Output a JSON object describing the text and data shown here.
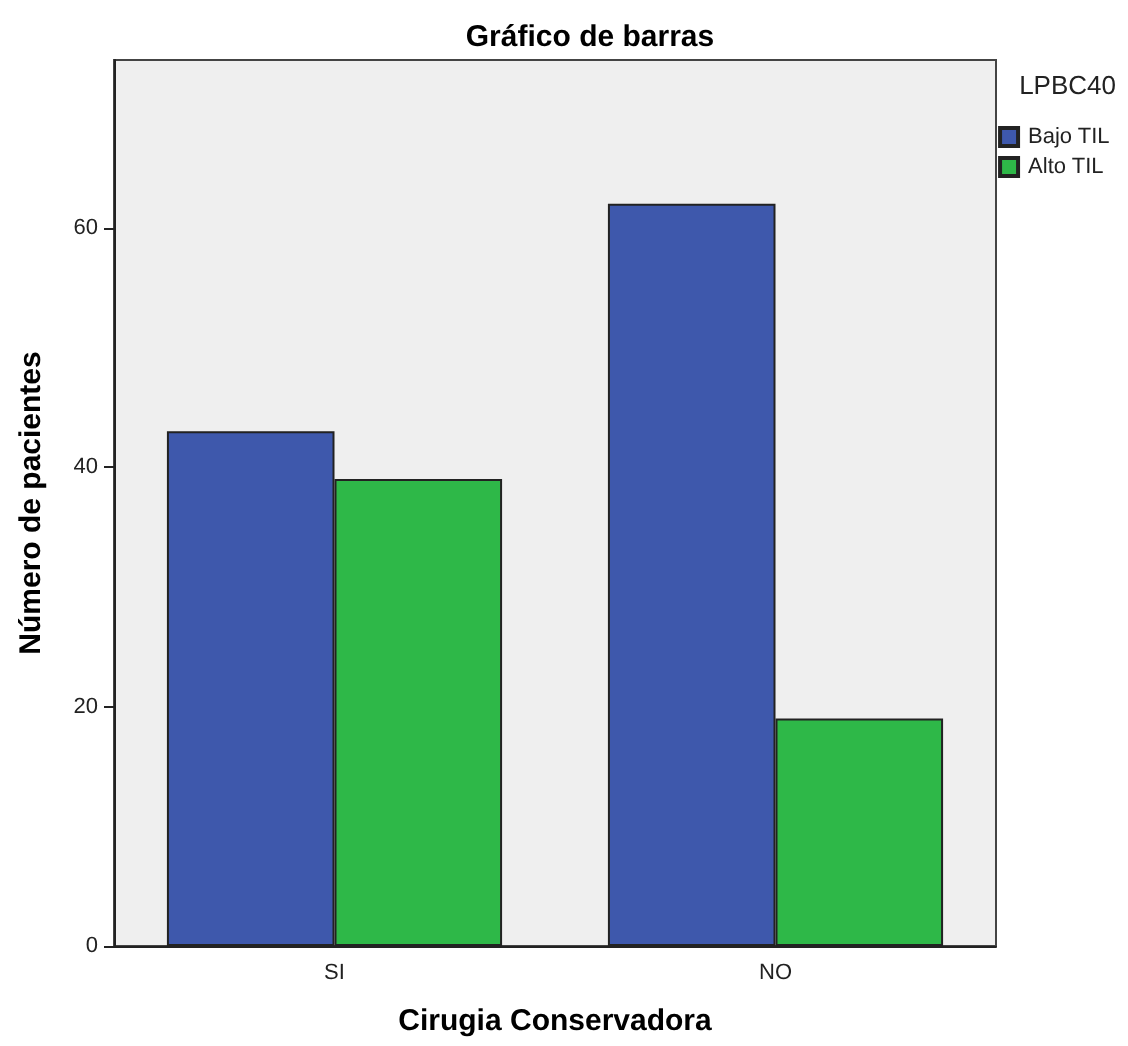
{
  "chart_data": {
    "type": "bar",
    "title": "Gráfico de barras",
    "xlabel": "Cirugia Conservadora",
    "ylabel": "Número de pacientes",
    "legend_title": "LPBC40",
    "categories": [
      "SI",
      "NO"
    ],
    "series": [
      {
        "name": "Bajo TIL",
        "color": "#3e58ac",
        "values": [
          43,
          62
        ]
      },
      {
        "name": "Alto TIL",
        "color": "#2eb848",
        "values": [
          39,
          19
        ]
      }
    ],
    "ylim": [
      0,
      74
    ],
    "yticks": [
      0,
      20,
      40,
      60
    ],
    "grid": false,
    "legend": "right"
  }
}
